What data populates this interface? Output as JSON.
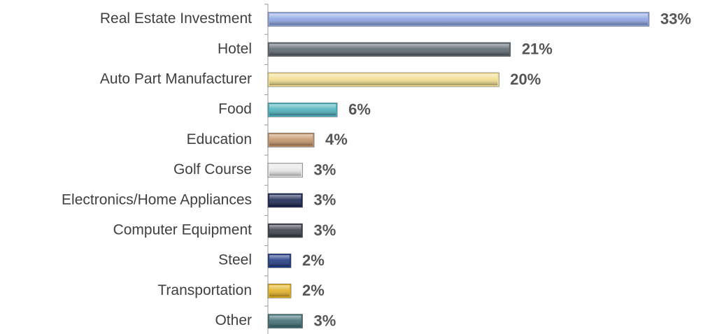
{
  "chart_data": {
    "type": "bar",
    "orientation": "horizontal",
    "categories": [
      "Real Estate Investment",
      "Hotel",
      "Auto Part Manufacturer",
      "Food",
      "Education",
      "Golf Course",
      "Electronics/Home Appliances",
      "Computer Equipment",
      "Steel",
      "Transportation",
      "Other"
    ],
    "values": [
      33,
      21,
      20,
      6,
      4,
      3,
      3,
      3,
      2,
      2,
      3
    ],
    "value_labels": [
      "33%",
      "21%",
      "20%",
      "6%",
      "4%",
      "3%",
      "3%",
      "3%",
      "2%",
      "2%",
      "3%"
    ],
    "colors": [
      "#8ea7e2",
      "#5c6870",
      "#f2de8e",
      "#4cb1bd",
      "#c4946a",
      "#e6e6e6",
      "#1c2652",
      "#3a3f48",
      "#1f3a82",
      "#e2b224",
      "#3f6f73"
    ]
  }
}
